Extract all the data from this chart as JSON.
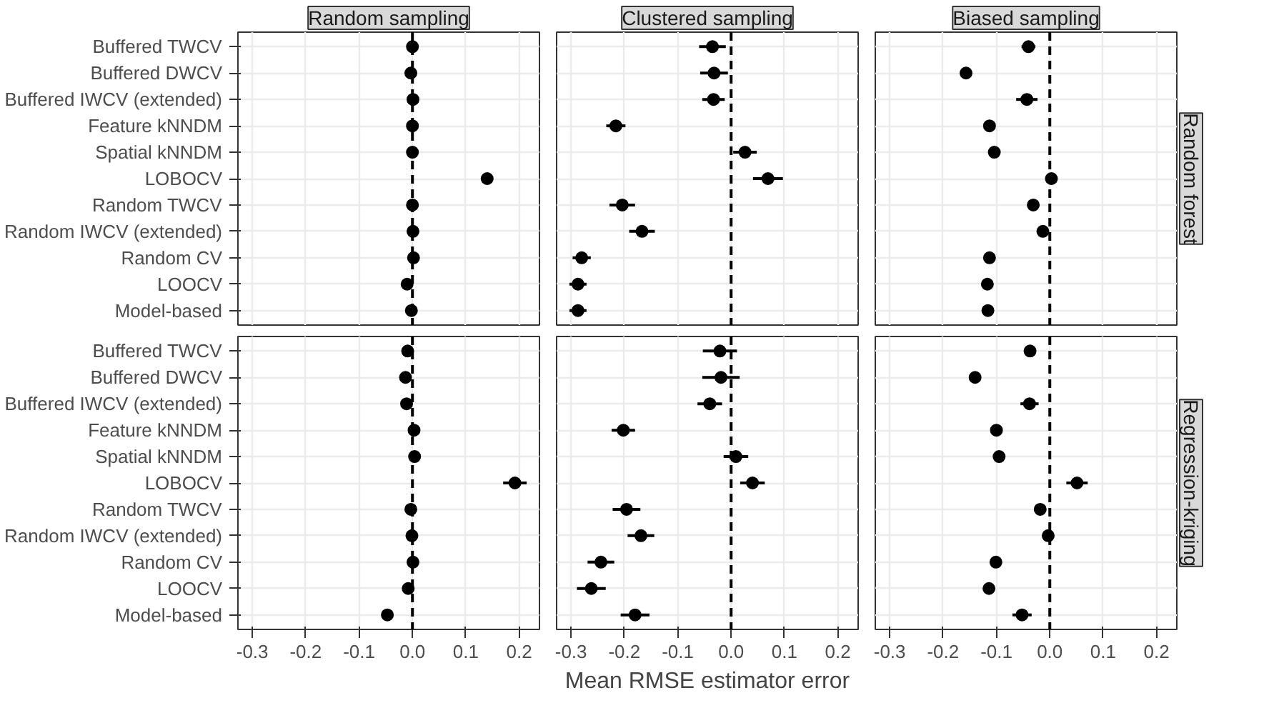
{
  "chart_data": [
    {
      "type": "scatter",
      "orientation": "horizontal",
      "title": "Random sampling",
      "categories": [
        "Buffered TWCV",
        "Buffered DWCV",
        "Buffered IWCV (extended)",
        "Feature kNNDM",
        "Spatial kNNDM",
        "LOBOCV",
        "Random TWCV",
        "Random IWCV (extended)",
        "Random CV",
        "LOOCV",
        "Model-based"
      ],
      "series": [
        {
          "color": "#000000",
          "values": [
            0.0,
            -0.003,
            0.001,
            0.0,
            0.0,
            0.14,
            0.0,
            0.001,
            0.002,
            -0.01,
            -0.002
          ],
          "errors": [
            null,
            null,
            null,
            null,
            null,
            0.008,
            null,
            null,
            null,
            null,
            null
          ]
        }
      ],
      "xlim": [
        -0.327,
        0.238
      ],
      "xticks": [
        -0.3,
        -0.2,
        -0.1,
        0,
        0.1,
        0.2
      ],
      "grid": true,
      "marker": "circle",
      "ref_lines": [
        {
          "axis": "x",
          "value": 0,
          "line_style": "dashed"
        }
      ],
      "tick_labels": "y"
    },
    {
      "type": "scatter",
      "orientation": "horizontal",
      "title": "Clustered sampling",
      "categories": [
        null,
        null,
        null,
        null,
        null,
        null,
        null,
        null,
        null,
        null,
        null
      ],
      "series": [
        {
          "color": "#000000",
          "values": [
            -0.035,
            -0.032,
            -0.033,
            -0.216,
            0.026,
            0.069,
            -0.204,
            -0.167,
            -0.28,
            -0.287,
            -0.287
          ],
          "errors": [
            0.025,
            0.026,
            0.021,
            0.018,
            0.022,
            0.028,
            0.024,
            0.024,
            0.017,
            0.016,
            0.016
          ]
        }
      ],
      "xlim": [
        -0.327,
        0.238
      ],
      "xticks": [
        -0.3,
        -0.2,
        -0.1,
        0,
        0.1,
        0.2
      ],
      "grid": true,
      "marker": "circle",
      "ref_lines": [
        {
          "axis": "x",
          "value": 0,
          "line_style": "dashed"
        }
      ],
      "tick_labels": false
    },
    {
      "type": "scatter",
      "orientation": "horizontal",
      "title": "Biased sampling",
      "y2label": "Random forest",
      "categories": [
        null,
        null,
        null,
        null,
        null,
        null,
        null,
        null,
        null,
        null,
        null
      ],
      "series": [
        {
          "color": "#000000",
          "values": [
            -0.04,
            -0.157,
            -0.043,
            -0.113,
            -0.104,
            0.003,
            -0.031,
            -0.013,
            -0.113,
            -0.117,
            -0.116
          ],
          "errors": [
            0.013,
            null,
            0.02,
            null,
            null,
            0.01,
            null,
            0.01,
            null,
            null,
            null
          ]
        }
      ],
      "xlim": [
        -0.327,
        0.238
      ],
      "xticks": [
        -0.3,
        -0.2,
        -0.1,
        0,
        0.1,
        0.2
      ],
      "grid": true,
      "marker": "circle",
      "ref_lines": [
        {
          "axis": "x",
          "value": 0,
          "line_style": "dashed"
        }
      ],
      "tick_labels": false
    },
    {
      "type": "scatter",
      "orientation": "horizontal",
      "categories": [
        "Buffered TWCV",
        "Buffered DWCV",
        "Buffered IWCV (extended)",
        "Feature kNNDM",
        "Spatial kNNDM",
        "LOBOCV",
        "Random TWCV",
        "Random IWCV (extended)",
        "Random CV",
        "LOOCV",
        "Model-based"
      ],
      "series": [
        {
          "color": "#000000",
          "values": [
            -0.009,
            -0.013,
            -0.011,
            0.003,
            0.004,
            0.192,
            -0.003,
            -0.001,
            0.001,
            -0.008,
            -0.047
          ],
          "errors": [
            null,
            null,
            null,
            null,
            null,
            0.022,
            null,
            null,
            null,
            null,
            0.01
          ]
        }
      ],
      "xlim": [
        -0.327,
        0.238
      ],
      "xticks": [
        {
          "value": -0.3,
          "label": "-0.3"
        },
        {
          "value": -0.2,
          "label": "-0.2"
        },
        {
          "value": -0.1,
          "label": "-0.1"
        },
        {
          "value": 0,
          "label": "0.0"
        },
        {
          "value": 0.1,
          "label": "0.1"
        },
        {
          "value": 0.2,
          "label": "0.2"
        }
      ],
      "grid": true,
      "marker": "circle",
      "ref_lines": [
        {
          "axis": "x",
          "value": 0,
          "line_style": "dashed"
        }
      ]
    },
    {
      "type": "scatter",
      "orientation": "horizontal",
      "xlabel": "Mean RMSE estimator error",
      "categories": [
        null,
        null,
        null,
        null,
        null,
        null,
        null,
        null,
        null,
        null,
        null
      ],
      "series": [
        {
          "color": "#000000",
          "values": [
            -0.021,
            -0.019,
            -0.04,
            -0.202,
            0.009,
            0.04,
            -0.196,
            -0.169,
            -0.244,
            -0.262,
            -0.18
          ],
          "errors": [
            0.032,
            0.035,
            0.023,
            0.022,
            0.023,
            0.023,
            0.026,
            0.025,
            0.025,
            0.027,
            0.027
          ]
        }
      ],
      "xlim": [
        -0.327,
        0.238
      ],
      "xticks": [
        {
          "value": -0.3,
          "label": "-0.3"
        },
        {
          "value": -0.2,
          "label": "-0.2"
        },
        {
          "value": -0.1,
          "label": "-0.1"
        },
        {
          "value": 0,
          "label": "0.0"
        },
        {
          "value": 0.1,
          "label": "0.1"
        },
        {
          "value": 0.2,
          "label": "0.2"
        }
      ],
      "grid": true,
      "marker": "circle",
      "ref_lines": [
        {
          "axis": "x",
          "value": 0,
          "line_style": "dashed"
        }
      ],
      "tick_labels": "x"
    },
    {
      "type": "scatter",
      "orientation": "horizontal",
      "y2label": "Regression-kriging",
      "categories": [
        null,
        null,
        null,
        null,
        null,
        null,
        null,
        null,
        null,
        null,
        null
      ],
      "series": [
        {
          "color": "#000000",
          "values": [
            -0.037,
            -0.14,
            -0.038,
            -0.1,
            -0.095,
            0.051,
            -0.018,
            -0.003,
            -0.101,
            -0.114,
            -0.052
          ],
          "errors": [
            0.01,
            null,
            0.017,
            null,
            null,
            0.02,
            null,
            null,
            null,
            null,
            0.018
          ]
        }
      ],
      "xlim": [
        -0.327,
        0.238
      ],
      "xticks": [
        {
          "value": -0.3,
          "label": "-0.3"
        },
        {
          "value": -0.2,
          "label": "-0.2"
        },
        {
          "value": -0.1,
          "label": "-0.1"
        },
        {
          "value": 0,
          "label": "0.0"
        },
        {
          "value": 0.1,
          "label": "0.1"
        },
        {
          "value": 0.2,
          "label": "0.2"
        }
      ],
      "grid": true,
      "marker": "circle",
      "ref_lines": [
        {
          "axis": "x",
          "value": 0,
          "line_style": "dashed"
        }
      ],
      "tick_labels": "x"
    }
  ]
}
